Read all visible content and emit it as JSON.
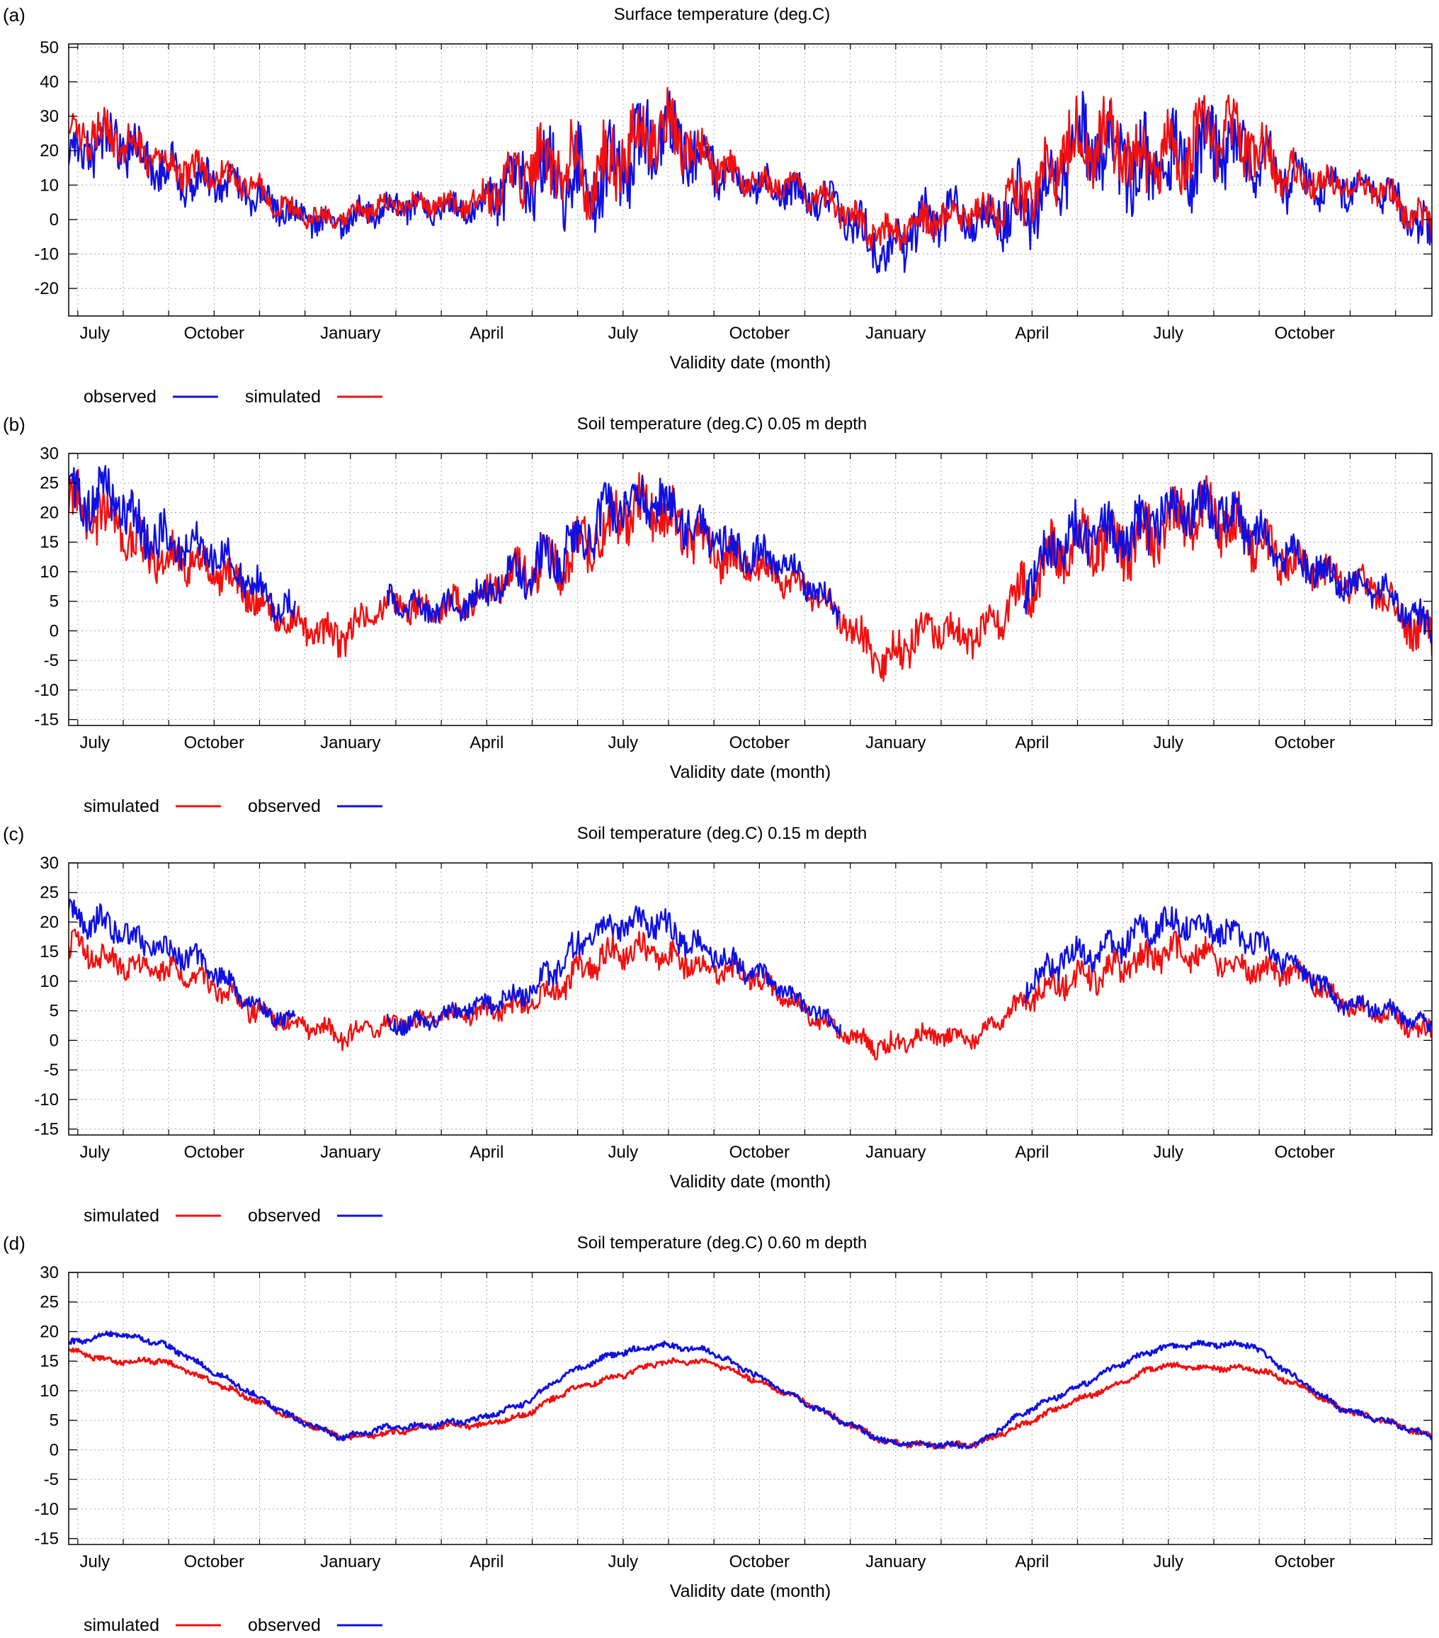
{
  "colors": {
    "observed": "#1010e0",
    "simulated": "#f01010",
    "grid": "#a8a8a8",
    "axis": "#000000"
  },
  "chart_data": [
    {
      "type": "line",
      "panel_label": "(a)",
      "title": "Surface temperature (deg.C)",
      "xlabel": "Validity date (month)",
      "ylabel": "",
      "ylim": [
        -28,
        51
      ],
      "yticks": [
        "50",
        "40",
        "30",
        "20",
        "10",
        "0",
        "-10",
        "-20"
      ],
      "xlim": [
        0,
        30
      ],
      "xticks": [
        {
          "x": 0.2,
          "label": "July"
        },
        {
          "x": 3.2,
          "label": "October"
        },
        {
          "x": 6.2,
          "label": "January"
        },
        {
          "x": 9.2,
          "label": "April"
        },
        {
          "x": 12.2,
          "label": "July"
        },
        {
          "x": 15.2,
          "label": "October"
        },
        {
          "x": 18.2,
          "label": "January"
        },
        {
          "x": 21.2,
          "label": "April"
        },
        {
          "x": 24.2,
          "label": "July"
        },
        {
          "x": 27.2,
          "label": "October"
        }
      ],
      "grid": true,
      "legend": {
        "position": "bottom-left",
        "order": [
          "observed",
          "simulated"
        ]
      },
      "series": [
        {
          "name": "observed",
          "key": "observed",
          "x": [
            0,
            1,
            2,
            3,
            4,
            5,
            6,
            7,
            8,
            9,
            10,
            11,
            12,
            13,
            14,
            15,
            16,
            17,
            18,
            19,
            20,
            21,
            22,
            23,
            24,
            25,
            26,
            27,
            28,
            29,
            30
          ],
          "y": [
            18,
            20,
            18,
            12,
            6,
            2,
            0,
            2,
            4,
            5,
            9,
            13,
            18,
            20,
            18,
            12,
            6,
            2,
            -6,
            -2,
            0,
            8,
            14,
            18,
            19,
            18,
            17,
            14,
            8,
            6,
            -2
          ],
          "amp": [
            16,
            15,
            14,
            12,
            10,
            8,
            8,
            8,
            8,
            10,
            22,
            26,
            28,
            24,
            16,
            10,
            10,
            12,
            16,
            16,
            12,
            22,
            26,
            26,
            26,
            24,
            22,
            14,
            10,
            10,
            14
          ]
        },
        {
          "name": "simulated",
          "key": "simulated",
          "x": [
            0,
            1,
            2,
            3,
            4,
            5,
            6,
            7,
            8,
            9,
            10,
            11,
            12,
            13,
            14,
            15,
            16,
            17,
            18,
            19,
            20,
            21,
            22,
            23,
            24,
            25,
            26,
            27,
            28,
            29,
            30
          ],
          "y": [
            24,
            22,
            19,
            14,
            8,
            3,
            1,
            3,
            5,
            6,
            11,
            17,
            21,
            22,
            19,
            13,
            7,
            3,
            -3,
            -1,
            1,
            10,
            17,
            21,
            22,
            21,
            20,
            15,
            9,
            7,
            0
          ],
          "amp": [
            14,
            12,
            10,
            10,
            8,
            6,
            6,
            6,
            6,
            8,
            18,
            22,
            22,
            20,
            14,
            8,
            8,
            8,
            10,
            10,
            10,
            18,
            22,
            22,
            22,
            20,
            18,
            12,
            8,
            8,
            10
          ]
        }
      ]
    },
    {
      "type": "line",
      "panel_label": "(b)",
      "title": "Soil temperature (deg.C) 0.05 m depth",
      "xlabel": "Validity date (month)",
      "ylabel": "",
      "ylim": [
        -16,
        30
      ],
      "yticks": [
        "30",
        "25",
        "20",
        "15",
        "10",
        "5",
        "0",
        "-5",
        "-10",
        "-15"
      ],
      "xlim": [
        0,
        30
      ],
      "xticks": [
        {
          "x": 0.2,
          "label": "July"
        },
        {
          "x": 3.2,
          "label": "October"
        },
        {
          "x": 6.2,
          "label": "January"
        },
        {
          "x": 9.2,
          "label": "April"
        },
        {
          "x": 12.2,
          "label": "July"
        },
        {
          "x": 15.2,
          "label": "October"
        },
        {
          "x": 18.2,
          "label": "January"
        },
        {
          "x": 21.2,
          "label": "April"
        },
        {
          "x": 24.2,
          "label": "July"
        },
        {
          "x": 27.2,
          "label": "October"
        }
      ],
      "grid": true,
      "legend": {
        "position": "bottom-left",
        "order": [
          "simulated",
          "observed"
        ]
      },
      "series": [
        {
          "name": "simulated",
          "key": "simulated",
          "x": [
            0,
            1,
            2,
            3,
            4,
            5,
            6,
            7,
            8,
            9,
            10,
            11,
            12,
            13,
            14,
            15,
            16,
            17,
            18,
            19,
            20,
            21,
            22,
            23,
            24,
            25,
            26,
            27,
            28,
            29,
            30
          ],
          "y": [
            19,
            18,
            14,
            10,
            6,
            2,
            -2,
            4,
            5,
            5,
            9,
            15,
            18,
            19,
            16,
            11,
            7,
            3,
            -5,
            -1,
            0,
            7,
            13,
            16,
            18,
            18,
            17,
            12,
            7,
            6,
            -1
          ],
          "amp": [
            10,
            9,
            8,
            6,
            6,
            5,
            6,
            5,
            5,
            5,
            8,
            10,
            10,
            9,
            8,
            6,
            5,
            5,
            8,
            6,
            6,
            9,
            10,
            10,
            10,
            10,
            9,
            7,
            6,
            6,
            7
          ]
        },
        {
          "name": "observed",
          "key": "observed",
          "x": [
            0,
            1,
            2,
            3,
            4,
            5,
            6,
            7,
            8,
            9,
            10,
            11,
            12,
            13,
            14,
            15,
            16,
            17,
            18,
            19,
            20,
            21,
            22,
            23,
            24,
            25,
            26,
            27,
            28,
            29,
            30
          ],
          "y": [
            21,
            22,
            17,
            13,
            8,
            4,
            null,
            5,
            5,
            5,
            9,
            16,
            20,
            21,
            18,
            13,
            9,
            4,
            null,
            null,
            null,
            8,
            14,
            17,
            20,
            19,
            18,
            13,
            7,
            7,
            1
          ],
          "amp": [
            10,
            9,
            8,
            6,
            6,
            5,
            0,
            5,
            5,
            5,
            7,
            9,
            9,
            8,
            7,
            6,
            5,
            5,
            0,
            0,
            0,
            8,
            9,
            9,
            9,
            9,
            8,
            6,
            5,
            5,
            6
          ]
        }
      ]
    },
    {
      "type": "line",
      "panel_label": "(c)",
      "title": "Soil temperature (deg.C) 0.15 m depth",
      "xlabel": "Validity date (month)",
      "ylabel": "",
      "ylim": [
        -16,
        30
      ],
      "yticks": [
        "30",
        "25",
        "20",
        "15",
        "10",
        "5",
        "0",
        "-5",
        "-10",
        "-15"
      ],
      "xlim": [
        0,
        30
      ],
      "xticks": [
        {
          "x": 0.2,
          "label": "July"
        },
        {
          "x": 3.2,
          "label": "October"
        },
        {
          "x": 6.2,
          "label": "January"
        },
        {
          "x": 9.2,
          "label": "April"
        },
        {
          "x": 12.2,
          "label": "July"
        },
        {
          "x": 15.2,
          "label": "October"
        },
        {
          "x": 18.2,
          "label": "January"
        },
        {
          "x": 21.2,
          "label": "April"
        },
        {
          "x": 24.2,
          "label": "July"
        },
        {
          "x": 27.2,
          "label": "October"
        }
      ],
      "grid": true,
      "legend": {
        "position": "bottom-left",
        "order": [
          "simulated",
          "observed"
        ]
      },
      "series": [
        {
          "name": "simulated",
          "key": "simulated",
          "x": [
            0,
            1,
            2,
            3,
            4,
            5,
            6,
            7,
            8,
            9,
            10,
            11,
            12,
            13,
            14,
            15,
            16,
            17,
            18,
            19,
            20,
            21,
            22,
            23,
            24,
            25,
            26,
            27,
            28,
            29,
            30
          ],
          "y": [
            15,
            14,
            12,
            9,
            6,
            3,
            0,
            3,
            4,
            4,
            6,
            11,
            14,
            15,
            13,
            10,
            6,
            2,
            -2,
            1,
            1,
            6,
            10,
            13,
            14,
            14,
            13,
            11,
            6,
            5,
            1
          ],
          "amp": [
            5,
            4,
            4,
            4,
            4,
            3,
            4,
            3,
            3,
            3,
            4,
            5,
            5,
            5,
            4,
            4,
            3,
            3,
            4,
            3,
            3,
            4,
            5,
            5,
            5,
            5,
            4,
            4,
            3,
            3,
            4
          ]
        },
        {
          "name": "observed",
          "key": "observed",
          "x": [
            0,
            1,
            2,
            3,
            4,
            5,
            6,
            7,
            8,
            9,
            10,
            11,
            12,
            13,
            14,
            15,
            16,
            17,
            18,
            19,
            20,
            21,
            22,
            23,
            24,
            25,
            26,
            27,
            28,
            29,
            30
          ],
          "y": [
            20,
            20,
            16,
            12,
            7,
            3,
            null,
            3,
            4,
            5,
            8,
            15,
            19,
            20,
            16,
            11,
            7,
            3,
            null,
            null,
            null,
            8,
            14,
            17,
            19,
            19,
            18,
            12,
            6,
            6,
            2
          ],
          "amp": [
            5,
            5,
            4,
            4,
            3,
            3,
            0,
            3,
            3,
            3,
            4,
            5,
            5,
            5,
            4,
            4,
            3,
            3,
            0,
            0,
            0,
            4,
            5,
            5,
            5,
            5,
            4,
            4,
            3,
            3,
            3
          ]
        }
      ]
    },
    {
      "type": "line",
      "panel_label": "(d)",
      "title": "Soil temperature (deg.C) 0.60 m depth",
      "xlabel": "Validity date (month)",
      "ylabel": "",
      "ylim": [
        -16,
        30
      ],
      "yticks": [
        "30",
        "25",
        "20",
        "15",
        "10",
        "5",
        "0",
        "-5",
        "-10",
        "-15"
      ],
      "xlim": [
        0,
        30
      ],
      "xticks": [
        {
          "x": 0.2,
          "label": "July"
        },
        {
          "x": 3.2,
          "label": "October"
        },
        {
          "x": 6.2,
          "label": "January"
        },
        {
          "x": 9.2,
          "label": "April"
        },
        {
          "x": 12.2,
          "label": "July"
        },
        {
          "x": 15.2,
          "label": "October"
        },
        {
          "x": 18.2,
          "label": "January"
        },
        {
          "x": 21.2,
          "label": "April"
        },
        {
          "x": 24.2,
          "label": "July"
        },
        {
          "x": 27.2,
          "label": "October"
        }
      ],
      "grid": true,
      "legend": {
        "position": "bottom-left",
        "order": [
          "simulated",
          "observed"
        ]
      },
      "series": [
        {
          "name": "simulated",
          "key": "simulated",
          "x": [
            0,
            1,
            2,
            3,
            4,
            5,
            6,
            7,
            8,
            9,
            10,
            11,
            12,
            13,
            14,
            15,
            16,
            17,
            18,
            19,
            20,
            21,
            22,
            23,
            24,
            25,
            26,
            27,
            28,
            29,
            30
          ],
          "y": [
            17,
            15,
            15,
            12,
            9,
            5,
            2,
            3,
            4,
            4,
            6,
            10,
            12,
            15,
            15,
            12,
            9,
            5,
            1,
            1,
            1,
            4,
            8,
            11,
            14,
            14,
            14,
            11,
            7,
            5,
            2
          ],
          "amp": [
            1,
            1,
            1,
            1,
            1,
            1,
            1,
            1,
            1,
            1,
            1,
            1,
            1,
            1,
            1,
            1,
            1,
            1,
            1,
            1,
            1,
            1,
            1,
            1,
            1,
            1,
            1,
            1,
            1,
            1,
            1
          ]
        },
        {
          "name": "observed",
          "key": "observed",
          "x": [
            0,
            1,
            2,
            3,
            4,
            5,
            6,
            7,
            8,
            9,
            10,
            11,
            12,
            13,
            14,
            15,
            16,
            17,
            18,
            19,
            20,
            21,
            22,
            23,
            24,
            25,
            26,
            27,
            28,
            29,
            30
          ],
          "y": [
            18,
            20,
            18,
            14,
            10,
            5,
            2,
            4,
            4,
            5,
            8,
            13,
            16,
            18,
            17,
            13,
            9,
            5,
            1,
            1,
            1,
            6,
            10,
            14,
            17,
            18,
            18,
            12,
            7,
            5,
            2
          ],
          "amp": [
            1,
            1,
            1,
            1,
            1,
            1,
            1,
            1,
            1,
            1,
            1,
            1,
            1,
            1,
            1,
            1,
            1,
            1,
            1,
            1,
            1,
            1,
            1,
            1,
            1,
            1,
            1,
            1,
            1,
            1,
            1
          ]
        }
      ]
    }
  ]
}
